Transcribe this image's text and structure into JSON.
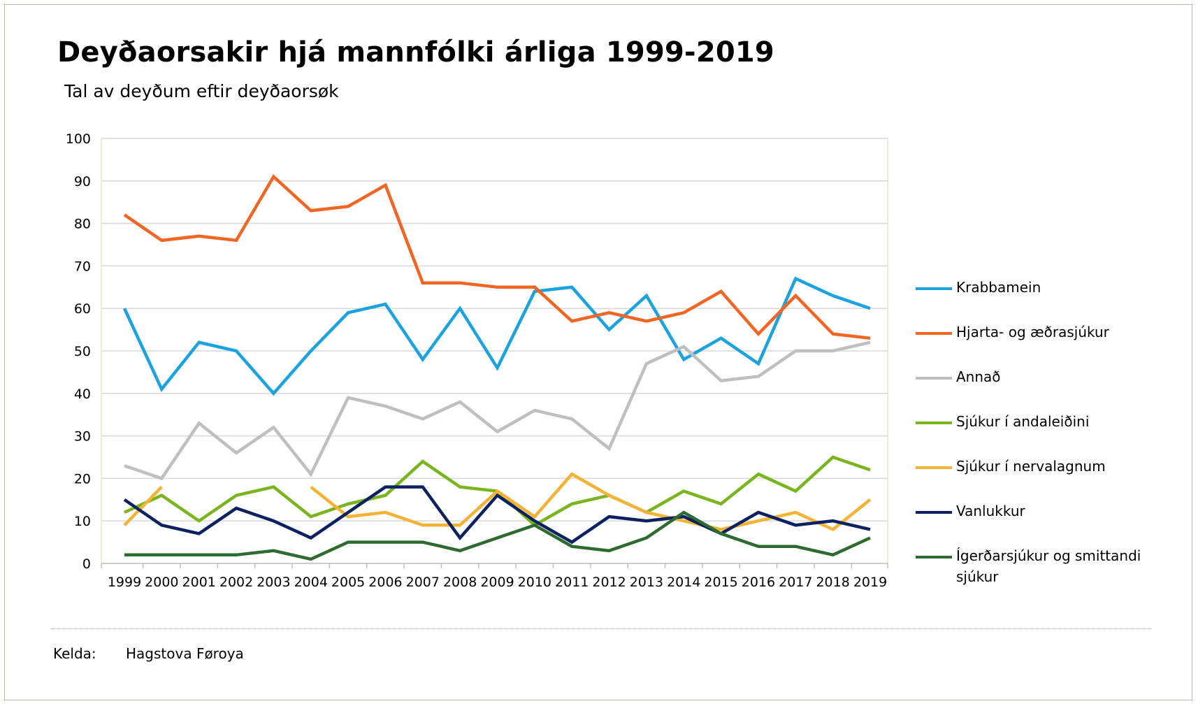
{
  "chart_data": {
    "type": "line",
    "title": "Deyðaorsakir hjá mannfólki árliga 1999-2019",
    "subtitle": "Tal av deyðum eftir deyðaorsøk",
    "xlabel": "",
    "ylabel": "",
    "ylim": [
      0,
      100
    ],
    "yticks": [
      0,
      10,
      20,
      30,
      40,
      50,
      60,
      70,
      80,
      90,
      100
    ],
    "grid": true,
    "legend_position": "right",
    "categories": [
      "1999",
      "2000",
      "2001",
      "2002",
      "2003",
      "2004",
      "2005",
      "2006",
      "2007",
      "2008",
      "2009",
      "2010",
      "2011",
      "2012",
      "2013",
      "2014",
      "2015",
      "2016",
      "2017",
      "2018",
      "2019"
    ],
    "series": [
      {
        "name": "Krabbamein",
        "color": "#1aa3e0",
        "values": [
          60,
          41,
          52,
          50,
          40,
          50,
          59,
          61,
          48,
          60,
          46,
          64,
          65,
          55,
          63,
          48,
          53,
          47,
          67,
          63,
          60
        ]
      },
      {
        "name": "Hjarta- og æðrasjúkur",
        "color": "#f26522",
        "values": [
          82,
          76,
          77,
          76,
          91,
          83,
          84,
          89,
          66,
          66,
          65,
          65,
          57,
          59,
          57,
          59,
          64,
          54,
          63,
          54,
          53
        ]
      },
      {
        "name": "Annað",
        "color": "#bfbfbf",
        "values": [
          23,
          20,
          33,
          26,
          32,
          21,
          39,
          37,
          34,
          38,
          31,
          36,
          34,
          27,
          47,
          51,
          43,
          44,
          50,
          50,
          52
        ]
      },
      {
        "name": "Sjúkur í andaleiðini",
        "color": "#7ab51d",
        "values": [
          12,
          16,
          10,
          16,
          18,
          11,
          14,
          16,
          24,
          18,
          17,
          9,
          14,
          16,
          12,
          17,
          14,
          21,
          17,
          25,
          22
        ]
      },
      {
        "name": "Sjúkur í nervalagnum",
        "color": "#f5b335",
        "values": [
          9,
          18,
          null,
          null,
          null,
          18,
          11,
          12,
          9,
          9,
          17,
          11,
          21,
          16,
          12,
          10,
          8,
          10,
          12,
          8,
          15
        ]
      },
      {
        "name": "Vanlukkur",
        "color": "#0b2161",
        "values": [
          15,
          9,
          7,
          13,
          10,
          6,
          12,
          18,
          18,
          6,
          16,
          10,
          5,
          11,
          10,
          11,
          7,
          12,
          9,
          10,
          8
        ]
      },
      {
        "name": "Ígerðarsjúkur og smittandi sjúkur",
        "color": "#2e6b30",
        "values": [
          2,
          2,
          2,
          2,
          3,
          1,
          5,
          5,
          5,
          3,
          6,
          9,
          4,
          3,
          6,
          12,
          7,
          4,
          4,
          2,
          6
        ]
      }
    ]
  },
  "source": {
    "label": "Kelda:",
    "value": "Hagstova Føroya"
  }
}
